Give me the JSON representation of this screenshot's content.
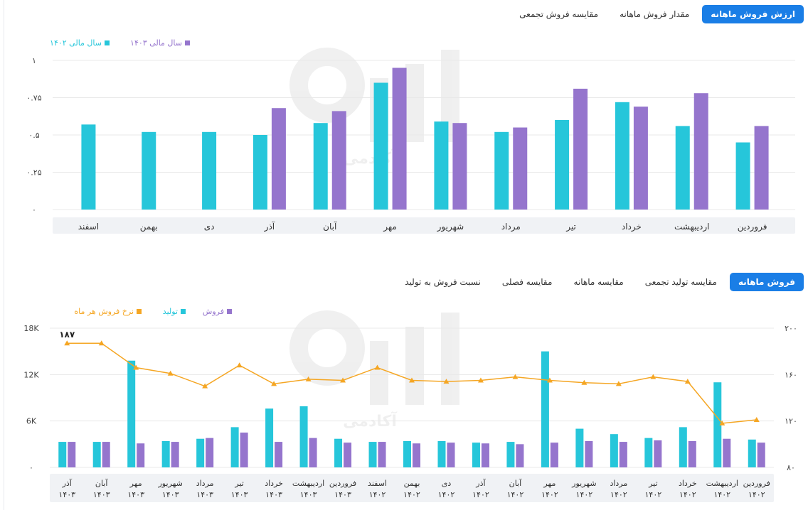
{
  "tabs_top": [
    {
      "label": "ارزش فروش ماهانه",
      "active": true
    },
    {
      "label": "مقدار فروش ماهانه",
      "active": false
    },
    {
      "label": "مقایسه فروش تجمعی",
      "active": false
    }
  ],
  "tabs_bottom": [
    {
      "label": "فروش ماهانه",
      "active": true
    },
    {
      "label": "مقایسه تولید تجمعی",
      "active": false
    },
    {
      "label": "مقایسه ماهانه",
      "active": false
    },
    {
      "label": "مقایسه فصلی",
      "active": false
    },
    {
      "label": "نسبت فروش به تولید",
      "active": false
    }
  ],
  "watermark": "آکادمی",
  "colors": {
    "teal": "#26c6da",
    "purple": "#9575cd",
    "orange": "#f5a623",
    "accent": "#1a7ee6"
  },
  "chart_data": [
    {
      "type": "bar",
      "title": "",
      "categories": [
        "فروردین",
        "اردیبهشت",
        "خرداد",
        "تیر",
        "مرداد",
        "شهریور",
        "مهر",
        "آبان",
        "آذر",
        "دی",
        "بهمن",
        "اسفند"
      ],
      "series": [
        {
          "name": "سال مالی ۱۴۰۲",
          "color": "#26c6da",
          "values": [
            0.45,
            0.56,
            0.72,
            0.6,
            0.52,
            0.59,
            0.85,
            0.58,
            0.5,
            0.52,
            0.52,
            0.57
          ]
        },
        {
          "name": "سال مالی ۱۴۰۳",
          "color": "#9575cd",
          "values": [
            0.56,
            0.78,
            0.69,
            0.81,
            0.55,
            0.58,
            0.95,
            0.66,
            0.68,
            null,
            null,
            null
          ]
        }
      ],
      "yticks": [
        "۰",
        "۰.۲۵",
        "۰.۵",
        "۰.۷۵",
        "۱"
      ],
      "ylim": [
        0,
        1
      ],
      "x_direction": "right-to-left",
      "legend_position": "top-left",
      "grid": true
    },
    {
      "type": "bar+line",
      "title": "",
      "categories": [
        [
          "فروردین",
          "۱۴۰۲"
        ],
        [
          "اردیبهشت",
          "۱۴۰۲"
        ],
        [
          "خرداد",
          "۱۴۰۲"
        ],
        [
          "تیر",
          "۱۴۰۲"
        ],
        [
          "مرداد",
          "۱۴۰۲"
        ],
        [
          "شهریور",
          "۱۴۰۲"
        ],
        [
          "مهر",
          "۱۴۰۲"
        ],
        [
          "آبان",
          "۱۴۰۲"
        ],
        [
          "آذر",
          "۱۴۰۲"
        ],
        [
          "دی",
          "۱۴۰۲"
        ],
        [
          "بهمن",
          "۱۴۰۲"
        ],
        [
          "اسفند",
          "۱۴۰۲"
        ],
        [
          "فروردین",
          "۱۴۰۳"
        ],
        [
          "اردیبهشت",
          "۱۴۰۳"
        ],
        [
          "خرداد",
          "۱۴۰۳"
        ],
        [
          "تیر",
          "۱۴۰۳"
        ],
        [
          "مرداد",
          "۱۴۰۳"
        ],
        [
          "شهریور",
          "۱۴۰۳"
        ],
        [
          "مهر",
          "۱۴۰۳"
        ],
        [
          "آبان",
          "۱۴۰۳"
        ],
        [
          "آذر",
          "۱۴۰۳"
        ]
      ],
      "series": [
        {
          "name": "فروش",
          "type": "bar",
          "color": "#9575cd",
          "axis": "left",
          "values": [
            3200,
            3700,
            3400,
            3500,
            3300,
            3400,
            3200,
            3000,
            3100,
            3200,
            3100,
            3300,
            3200,
            3800,
            3300,
            4500,
            3800,
            3300,
            3100,
            3300,
            3300
          ]
        },
        {
          "name": "تولید",
          "type": "bar",
          "color": "#26c6da",
          "axis": "left",
          "values": [
            3600,
            11000,
            5200,
            3800,
            4300,
            5000,
            15000,
            3300,
            3200,
            3400,
            3400,
            3300,
            3700,
            7900,
            7600,
            5200,
            3700,
            3400,
            13800,
            3300,
            3300
          ]
        },
        {
          "name": "نرخ فروش هر ماه",
          "type": "line",
          "color": "#f5a623",
          "axis": "right",
          "values": [
            121,
            118,
            154,
            158,
            152,
            153,
            155,
            158,
            155,
            154,
            155,
            166,
            155,
            156,
            152,
            168,
            150,
            161,
            166,
            187,
            187
          ]
        }
      ],
      "left_yticks": [
        "۰",
        "6K",
        "12K",
        "18K"
      ],
      "left_ylim": [
        0,
        18000
      ],
      "right_yticks": [
        "۸۰",
        "۱۲۰",
        "۱۶۰",
        "۲۰۰"
      ],
      "right_ylim": [
        80,
        200
      ],
      "annotation": {
        "index": 20,
        "text": "۱۸۷"
      },
      "x_direction": "right-to-left",
      "legend_position": "top-left",
      "grid": true
    }
  ]
}
